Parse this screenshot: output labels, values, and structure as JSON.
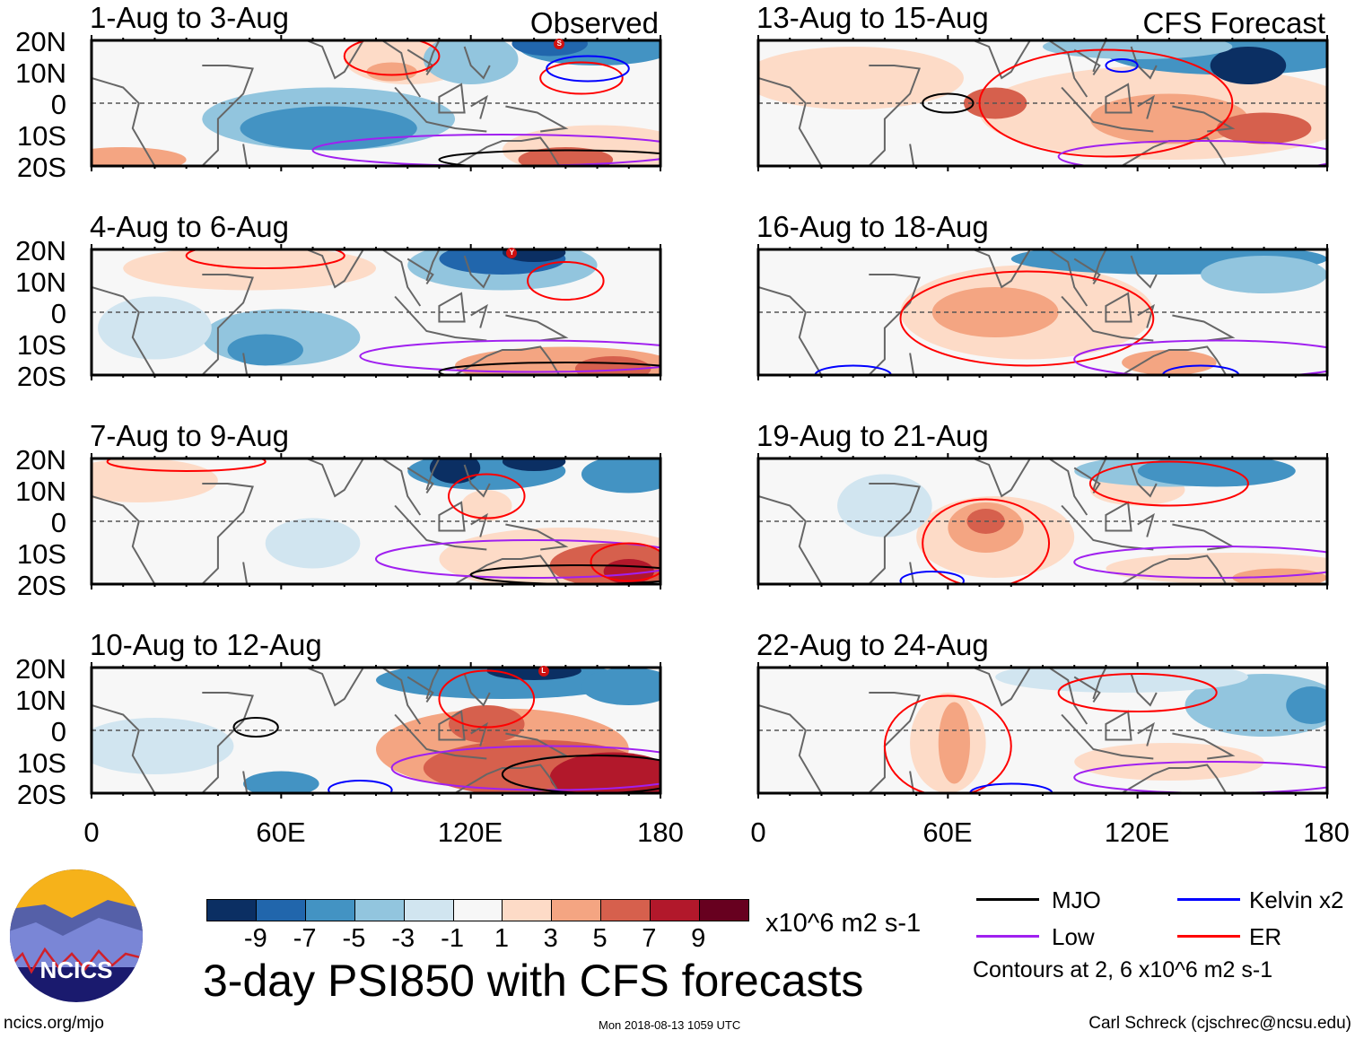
{
  "panels": [
    {
      "title": "1-Aug to 3-Aug",
      "tag": "Observed",
      "col": 0,
      "row": 0
    },
    {
      "title": "4-Aug to 6-Aug",
      "tag": "",
      "col": 0,
      "row": 1
    },
    {
      "title": "7-Aug to 9-Aug",
      "tag": "",
      "col": 0,
      "row": 2
    },
    {
      "title": "10-Aug to 12-Aug",
      "tag": "",
      "col": 0,
      "row": 3
    },
    {
      "title": "13-Aug to 15-Aug",
      "tag": "CFS Forecast",
      "col": 1,
      "row": 0
    },
    {
      "title": "16-Aug to 18-Aug",
      "tag": "",
      "col": 1,
      "row": 1
    },
    {
      "title": "19-Aug to 21-Aug",
      "tag": "",
      "col": 1,
      "row": 2
    },
    {
      "title": "22-Aug to 24-Aug",
      "tag": "",
      "col": 1,
      "row": 3
    }
  ],
  "lat_labels": [
    "20N",
    "10N",
    "0",
    "10S",
    "20S"
  ],
  "lon_labels": [
    "0",
    "60E",
    "120E",
    "180"
  ],
  "colorbar": {
    "labels": [
      "-9",
      "-7",
      "-5",
      "-3",
      "-1",
      "1",
      "3",
      "5",
      "7",
      "9"
    ],
    "colors": [
      "#0b2f63",
      "#2166ac",
      "#4393c3",
      "#92c5de",
      "#d1e5f0",
      "#f7f7f7",
      "#fddbc7",
      "#f4a582",
      "#d6604d",
      "#b2182b",
      "#67001f"
    ],
    "units": "x10^6 m2 s-1"
  },
  "title": "3-day PSI850 with CFS forecasts",
  "legend": {
    "items": [
      {
        "label": "MJO",
        "color": "#000000"
      },
      {
        "label": "Kelvin x2",
        "color": "#0000ff"
      },
      {
        "label": "Low",
        "color": "#a020f0"
      },
      {
        "label": "ER",
        "color": "#ff0000"
      }
    ],
    "note": "Contours at 2, 6 x10^6 m2 s-1"
  },
  "logo": {
    "text": "NCICS"
  },
  "footer": {
    "url": "ncics.org/mjo",
    "timestamp": "Mon 2018-08-13 1059 UTC",
    "author": "Carl Schreck (cjschrec@ncsu.edu)"
  },
  "storm_markers": [
    "S",
    "Y",
    "L"
  ]
}
